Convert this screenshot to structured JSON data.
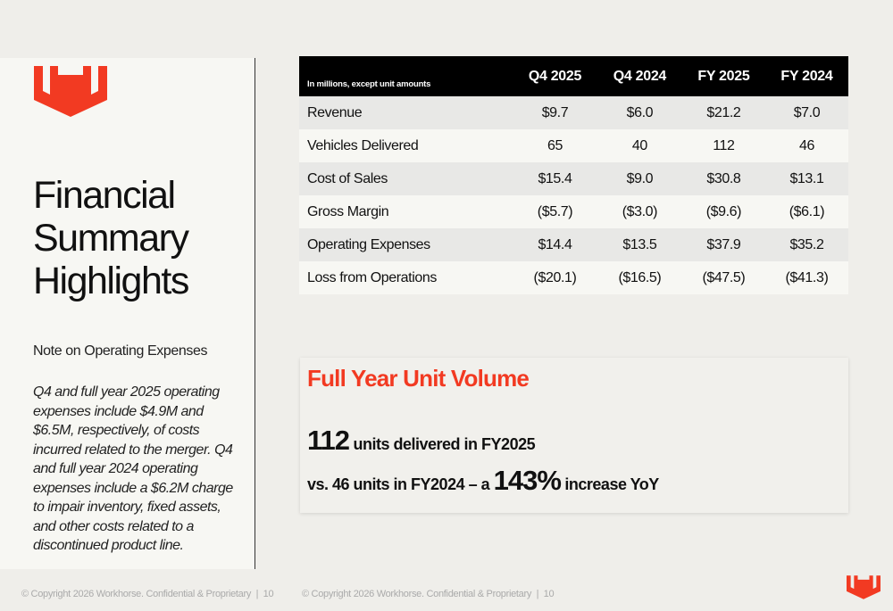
{
  "brand": {
    "accent": "#f23a22",
    "logo_icon": "workhorse-logo-icon"
  },
  "sidebar": {
    "title_lines": [
      "Financial",
      "Summary",
      "Highlights"
    ],
    "note_heading": "Note on Operating Expenses",
    "note_body": "Q4 and full year 2025 operating expenses include $4.9M and $6.5M, respectively, of costs incurred related to the merger. Q4 and full year 2024 operating expenses include a $6.2M charge to impair inventory, fixed assets, and other costs related to a discontinued product line."
  },
  "table": {
    "caption": "In millions, except unit amounts",
    "columns": [
      "Q4 2025",
      "Q4 2024",
      "FY 2025",
      "FY 2024"
    ],
    "rows": [
      {
        "label": "Revenue",
        "values": [
          "$9.7",
          "$6.0",
          "$21.2",
          "$7.0"
        ]
      },
      {
        "label": "Vehicles Delivered",
        "values": [
          "65",
          "40",
          "112",
          "46"
        ]
      },
      {
        "label": "Cost of Sales",
        "values": [
          "$15.4",
          "$9.0",
          "$30.8",
          "$13.1"
        ]
      },
      {
        "label": "Gross Margin",
        "values": [
          "($5.7)",
          "($3.0)",
          "($9.6)",
          "($6.1)"
        ]
      },
      {
        "label": "Operating Expenses",
        "values": [
          "$14.4",
          "$13.5",
          "$37.9",
          "$35.2"
        ]
      },
      {
        "label": "Loss from Operations",
        "values": [
          "($20.1)",
          "($16.5)",
          "($47.5)",
          "($41.3)"
        ]
      }
    ]
  },
  "unit_volume": {
    "heading": "Full Year Unit Volume",
    "line1_big": "112",
    "line1_rest": " units delivered in FY2025",
    "line2_pre": "vs. 46 units in FY2024 – a ",
    "line2_big": "143%",
    "line2_post": " increase YoY"
  },
  "footer": {
    "left": "© Copyright 2026 Workhorse. Confidential & Proprietary  |  10",
    "right": "© Copyright 2026 Workhorse. Confidential & Proprietary  |  10"
  }
}
